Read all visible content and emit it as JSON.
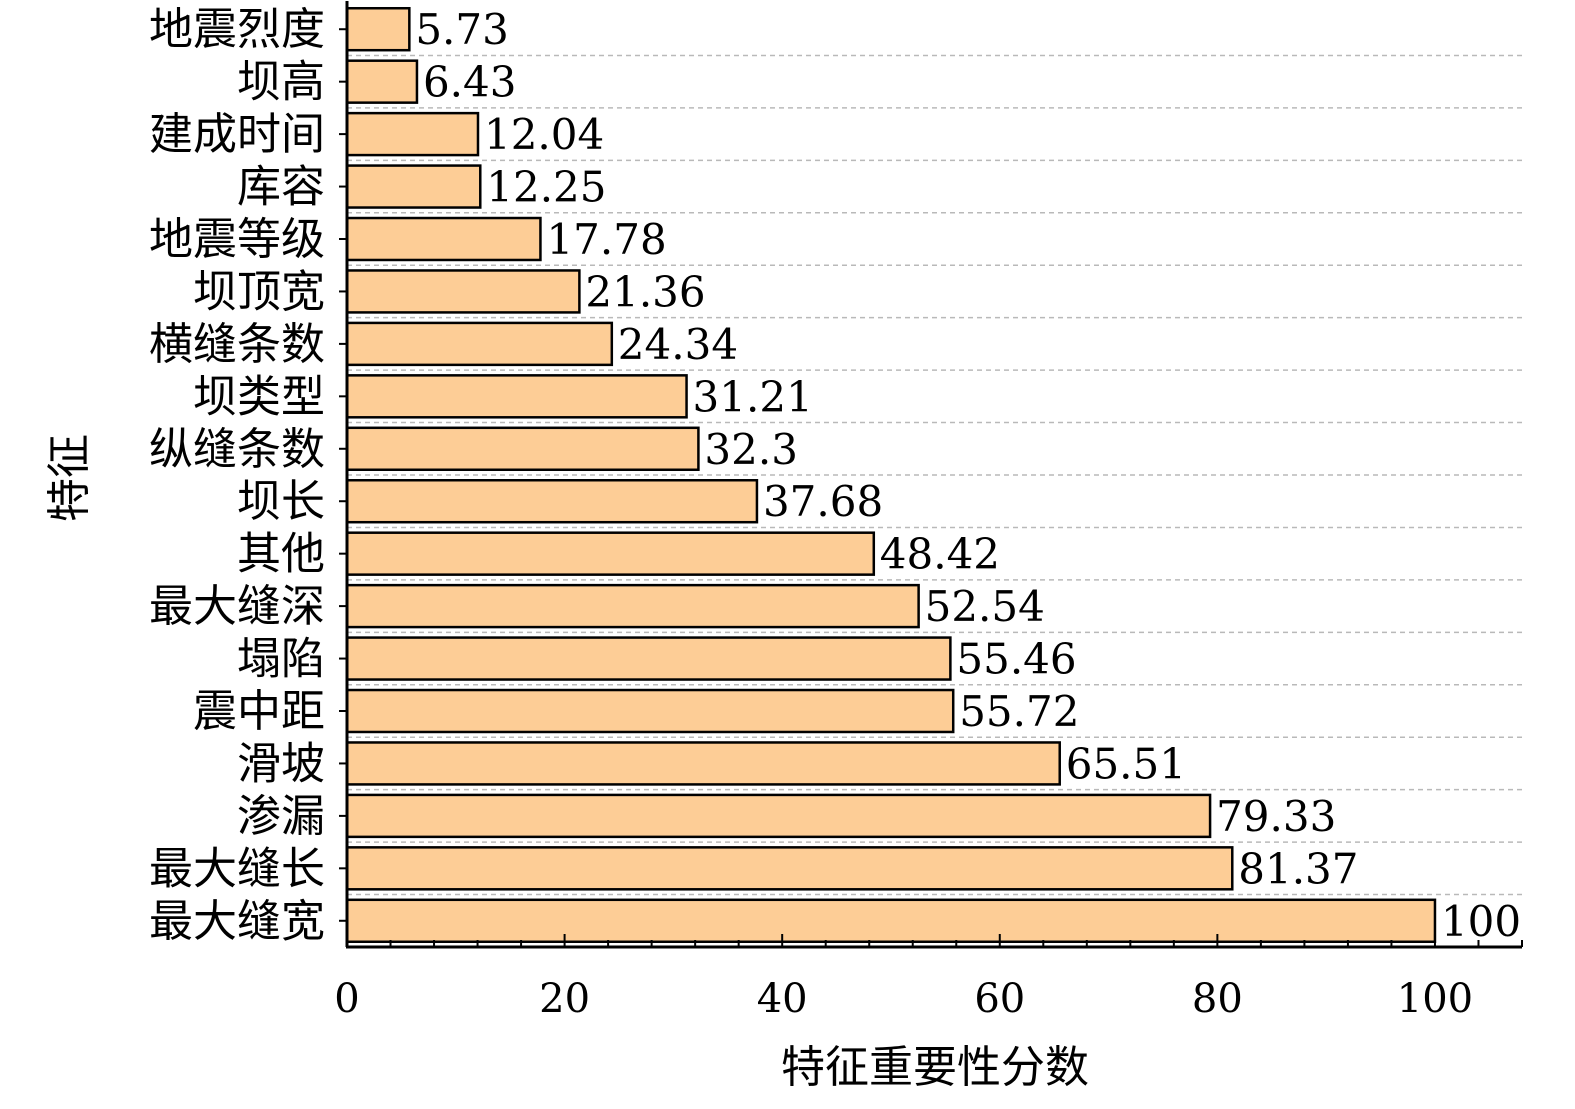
{
  "chart_data": {
    "type": "bar",
    "orientation": "horizontal",
    "categories": [
      "地震烈度",
      "坝高",
      "建成时间",
      "库容",
      "地震等级",
      "坝顶宽",
      "横缝条数",
      "坝类型",
      "纵缝条数",
      "坝长",
      "其他",
      "最大缝深",
      "塌陷",
      "震中距",
      "滑坡",
      "渗漏",
      "最大缝长",
      "最大缝宽"
    ],
    "values": [
      5.73,
      6.43,
      12.04,
      12.25,
      17.78,
      21.36,
      24.34,
      31.21,
      32.3,
      37.68,
      48.42,
      52.54,
      55.46,
      55.72,
      65.51,
      79.33,
      81.37,
      100
    ],
    "value_labels": [
      "5.73",
      "6.43",
      "12.04",
      "12.25",
      "17.78",
      "21.36",
      "24.34",
      "31.21",
      "32.3",
      "37.68",
      "48.42",
      "52.54",
      "55.46",
      "55.72",
      "65.51",
      "79.33",
      "81.37",
      "100"
    ],
    "xlabel": "特征重要性分数",
    "ylabel": "特征",
    "xlim": [
      0,
      108
    ],
    "xticks": [
      0,
      20,
      40,
      60,
      80,
      100
    ],
    "xtick_labels": [
      "0",
      "20",
      "40",
      "60",
      "80",
      "100"
    ],
    "grid": "horizontal dashed",
    "bar_color": "#FDCD96",
    "bar_edge_color": "#000000"
  }
}
